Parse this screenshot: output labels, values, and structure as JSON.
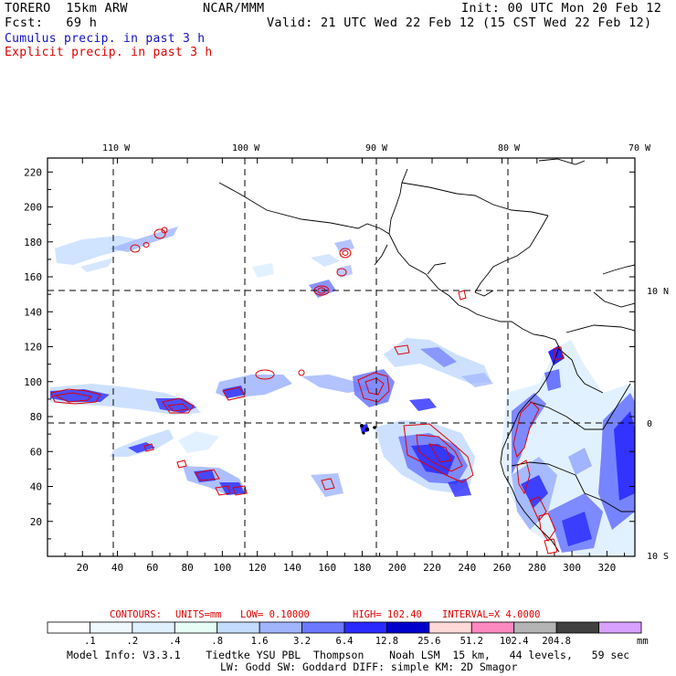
{
  "header": {
    "model": "TORERO  15km ARW",
    "org": "NCAR/MMM",
    "init": "Init: 00 UTC Mon 20 Feb 12",
    "fcst": "Fcst:   69 h",
    "valid": "Valid: 21 UTC Wed 22 Feb 12 (15 CST Wed 22 Feb 12)",
    "field1": "Cumulus precip. in past 3 h",
    "field2": "Explicit precip. in past 3 h"
  },
  "colors": {
    "cumulus": "#1010c8",
    "explicit": "#e00000"
  },
  "longitude_labels": [
    "110 W",
    "100 W",
    "90 W",
    "80 W",
    "70 W"
  ],
  "latitude_labels": [
    "10 N",
    "0",
    "10 S"
  ],
  "x_ticks": [
    "20",
    "40",
    "60",
    "80",
    "100",
    "120",
    "140",
    "160",
    "180",
    "200",
    "220",
    "240",
    "260",
    "280",
    "300",
    "320"
  ],
  "y_ticks": [
    "220",
    "200",
    "180",
    "160",
    "140",
    "120",
    "100",
    "80",
    "60",
    "40",
    "20"
  ],
  "contours_info": {
    "label": "CONTOURS:",
    "units": "UNITS=mm",
    "low": "LOW= 0.10000",
    "high": "HIGH= 102.40",
    "interval": "INTERVAL=X  4.0000"
  },
  "colorbar": {
    "labels": [
      ".1",
      ".2",
      ".4",
      ".8",
      "1.6",
      "3.2",
      "6.4",
      "12.8",
      "25.6",
      "51.2",
      "102.4",
      "204.8"
    ],
    "units": "mm",
    "colors": [
      "#ffffff",
      "#f0f8ff",
      "#dff0ff",
      "#e6fff6",
      "#c4dcff",
      "#a0b4ff",
      "#6c78ff",
      "#2a2aff",
      "#0000cc",
      "#ffd8d8",
      "#ff88c0",
      "#b4b4b4",
      "#404040",
      "#d8a0ff"
    ]
  },
  "footer": {
    "line1": "Model Info: V3.3.1    Tiedtke YSU PBL  Thompson    Noah LSM  15 km,   44 levels,   59 sec",
    "line2": "LW: Godd SW: Goddard DIFF: simple KM: 2D Smagor"
  }
}
